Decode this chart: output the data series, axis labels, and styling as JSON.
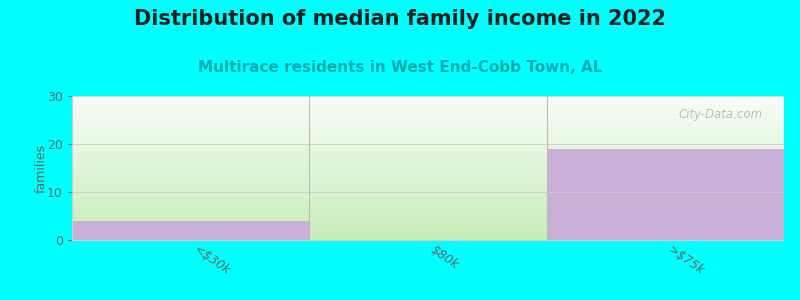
{
  "title": "Distribution of median family income in 2022",
  "subtitle": "Multirace residents in West End-Cobb Town, AL",
  "categories": [
    "<$30k",
    "$80k",
    ">$75k"
  ],
  "values": [
    4,
    0,
    19
  ],
  "bar_color": "#c9aed6",
  "ylabel": "families",
  "ylim": [
    0,
    30
  ],
  "yticks": [
    0,
    10,
    20,
    30
  ],
  "background_color": "#00ffff",
  "plot_bg_top": "#f5faf5",
  "plot_bg_bottom": "#c8edc0",
  "watermark": "City-Data.com",
  "title_fontsize": 15,
  "subtitle_fontsize": 11,
  "tick_labels": [
    "<$30k",
    "$80k",
    ">$75k"
  ],
  "separator_color": "#bbbbbb",
  "grid_color": "#cccccc",
  "spine_color": "#cccccc"
}
